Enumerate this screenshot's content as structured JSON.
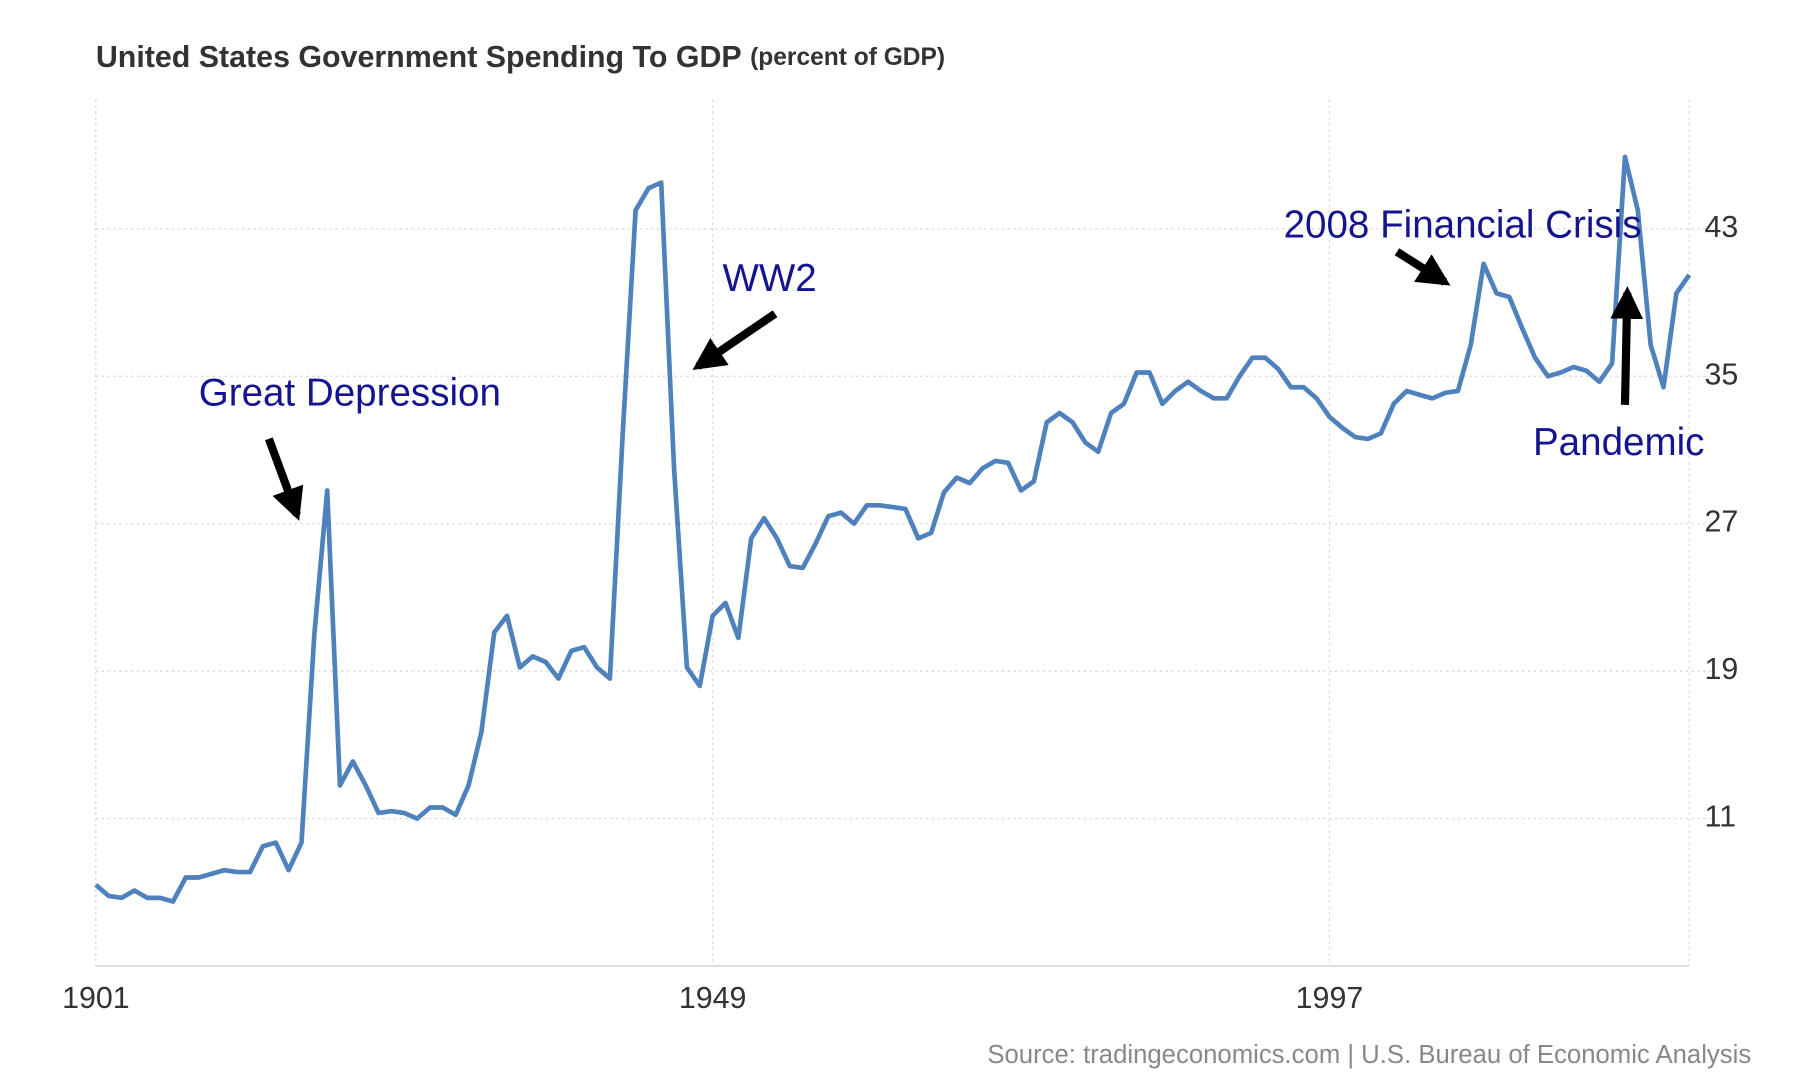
{
  "chart_data": {
    "type": "line",
    "title": "United States Government Spending To GDP",
    "subtitle": "(percent of GDP)",
    "source": "Source: tradingeconomics.com | U.S. Bureau of Economic Analysis",
    "annotations": [
      "Great Depression",
      "WW2",
      "2008 Financial Crisis",
      "Pandemic"
    ],
    "xlim": [
      1901,
      2025
    ],
    "xticks": [
      1901,
      1949,
      1997
    ],
    "ylim": [
      3,
      50
    ],
    "yticks": [
      11,
      19,
      27,
      35,
      43
    ],
    "grid": true,
    "x": [
      1901,
      1902,
      1903,
      1904,
      1905,
      1906,
      1907,
      1908,
      1909,
      1910,
      1911,
      1912,
      1913,
      1914,
      1915,
      1916,
      1917,
      1918,
      1919,
      1920,
      1921,
      1922,
      1923,
      1924,
      1925,
      1926,
      1927,
      1928,
      1929,
      1930,
      1931,
      1932,
      1933,
      1934,
      1935,
      1936,
      1937,
      1938,
      1939,
      1940,
      1941,
      1942,
      1943,
      1944,
      1945,
      1946,
      1947,
      1948,
      1949,
      1950,
      1951,
      1952,
      1953,
      1954,
      1955,
      1956,
      1957,
      1958,
      1959,
      1960,
      1961,
      1962,
      1963,
      1964,
      1965,
      1966,
      1967,
      1968,
      1969,
      1970,
      1971,
      1972,
      1973,
      1974,
      1975,
      1976,
      1977,
      1978,
      1979,
      1980,
      1981,
      1982,
      1983,
      1984,
      1985,
      1986,
      1987,
      1988,
      1989,
      1990,
      1991,
      1992,
      1993,
      1994,
      1995,
      1996,
      1997,
      1998,
      1999,
      2000,
      2001,
      2002,
      2003,
      2004,
      2005,
      2006,
      2007,
      2008,
      2009,
      2010,
      2011,
      2012,
      2013,
      2014,
      2015,
      2016,
      2017,
      2018,
      2019,
      2020,
      2021,
      2022,
      2023,
      2024,
      2025
    ],
    "series": [
      {
        "name": "Government Spending To GDP",
        "color": "#4f81bd",
        "values": [
          7.4,
          6.8,
          6.7,
          7.1,
          6.7,
          6.7,
          6.5,
          7.8,
          7.8,
          8.0,
          8.2,
          8.1,
          8.1,
          9.5,
          9.7,
          8.2,
          9.7,
          21,
          28.8,
          12.8,
          14.1,
          12.8,
          11.3,
          11.4,
          11.3,
          11.0,
          11.6,
          11.6,
          11.2,
          12.8,
          15.7,
          21.1,
          22.0,
          19.2,
          19.8,
          19.5,
          18.6,
          20.1,
          20.3,
          19.2,
          18.6,
          31.9,
          44,
          45.2,
          45.5,
          30,
          19.2,
          18.2,
          22,
          22.7,
          20.8,
          26.2,
          27.3,
          26.2,
          24.7,
          24.6,
          25.9,
          27.4,
          27.6,
          27,
          28,
          28,
          27.9,
          27.8,
          26.2,
          26.5,
          28.7,
          29.5,
          29.2,
          30,
          30.4,
          30.3,
          28.8,
          29.3,
          32.5,
          33,
          32.5,
          31.4,
          30.9,
          33,
          33.5,
          35.2,
          35.2,
          33.5,
          34.2,
          34.7,
          34.2,
          33.8,
          33.8,
          35,
          36,
          36,
          35.4,
          34.4,
          34.4,
          33.8,
          32.8,
          32.2,
          31.7,
          31.6,
          31.9,
          33.5,
          34.2,
          34,
          33.8,
          34.1,
          34.2,
          36.7,
          41.1,
          39.5,
          39.3,
          37.6,
          36,
          35,
          35.2,
          35.5,
          35.3,
          34.7,
          35.7,
          46.9,
          44,
          36.7,
          34.4,
          39.5,
          40.5
        ]
      }
    ]
  }
}
